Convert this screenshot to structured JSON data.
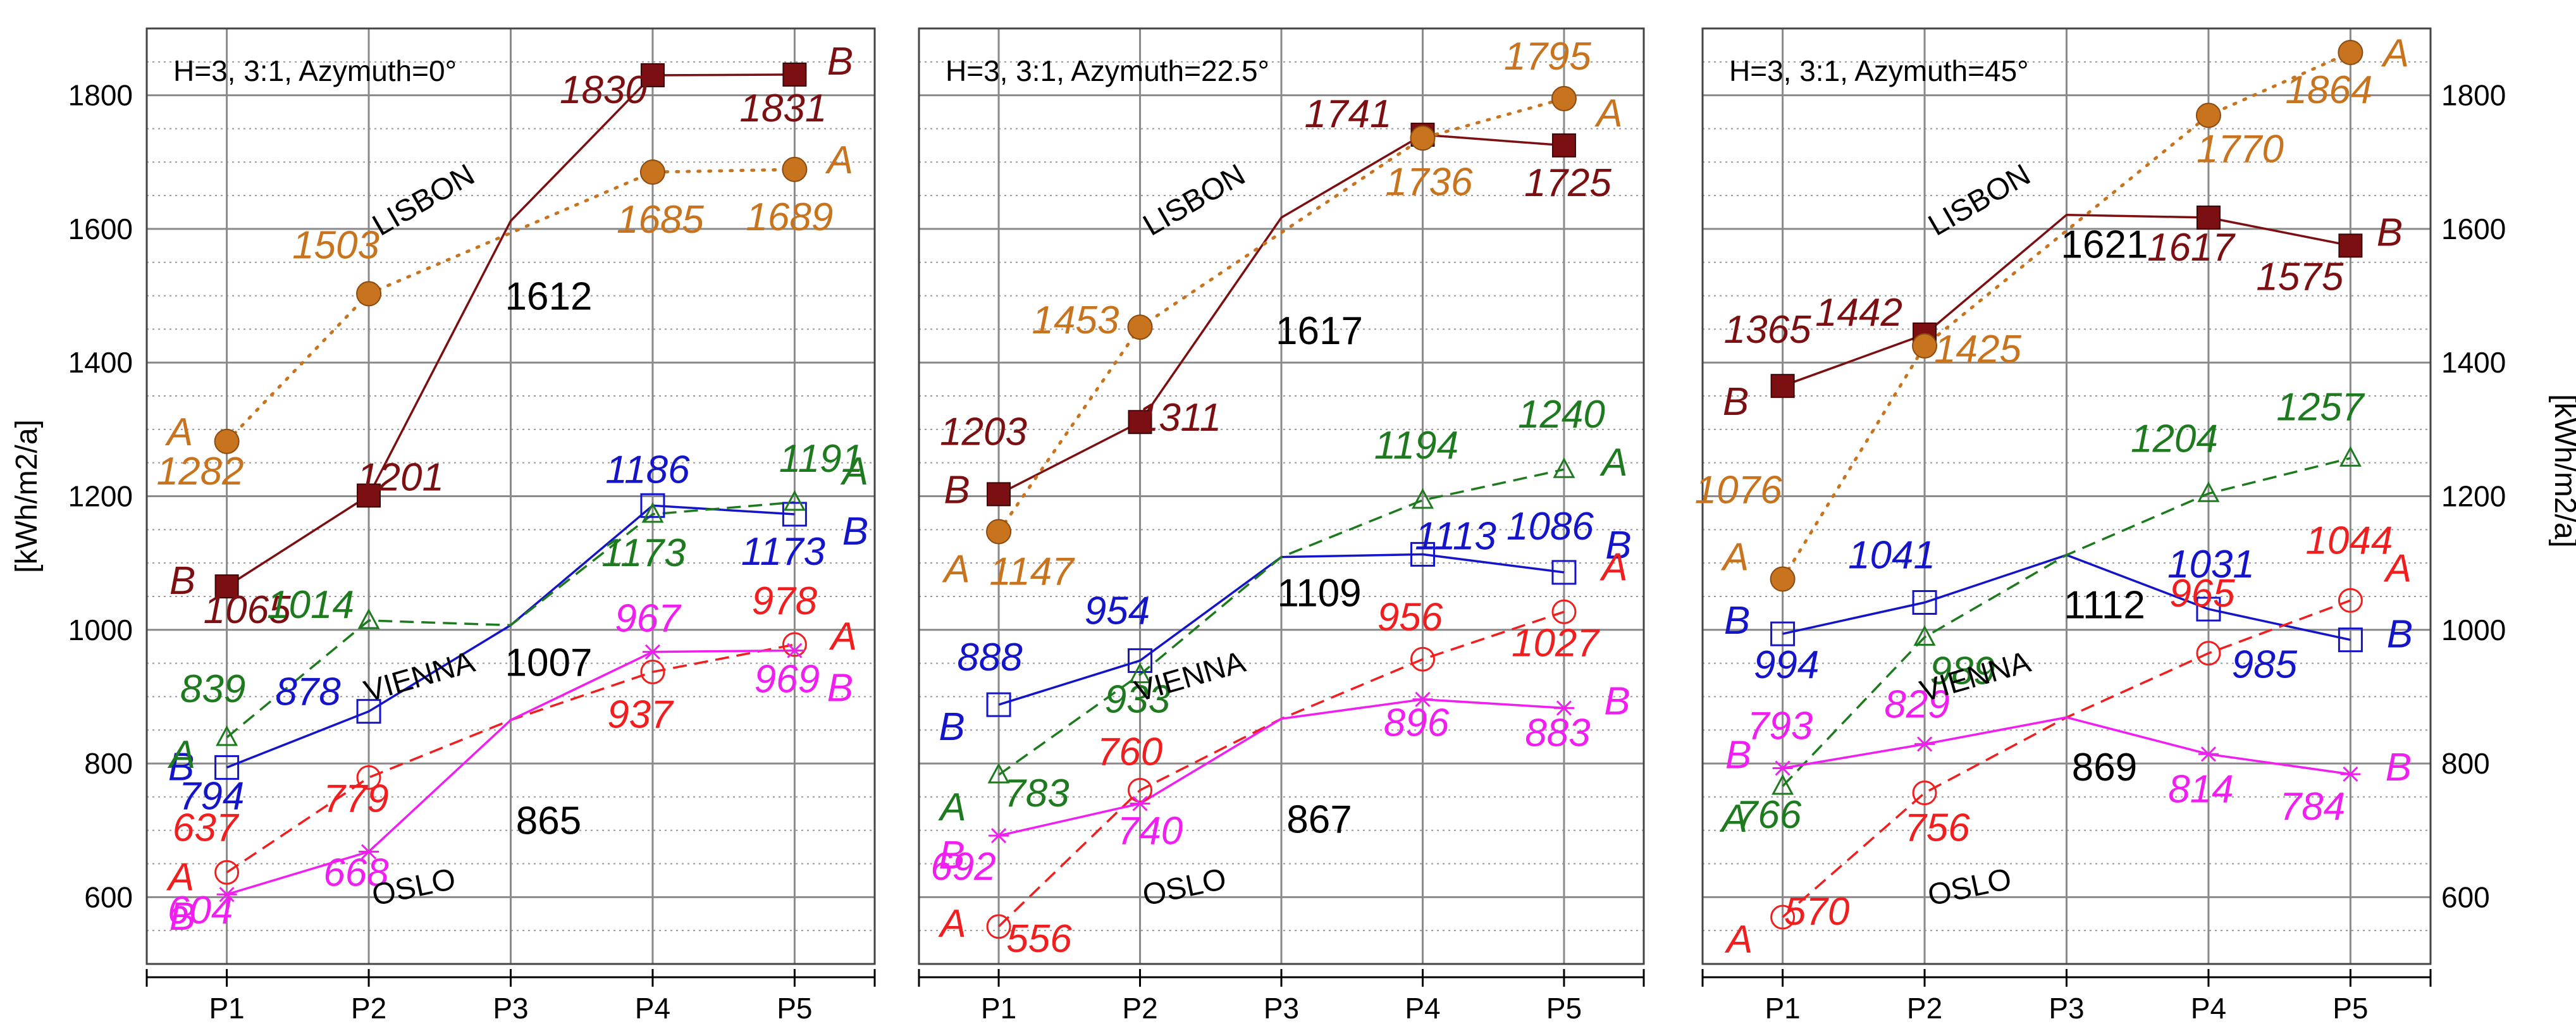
{
  "chart_data": {
    "type": "line",
    "ylabel": "[kWh/m2/a]",
    "ylim": [
      500,
      1900
    ],
    "yticks": [
      600,
      800,
      1000,
      1200,
      1400,
      1600,
      1800
    ],
    "grid": true,
    "categories": [
      "P1",
      "P2",
      "P3",
      "P4",
      "P5"
    ],
    "colors": {
      "lisbon_b": "#7B0F12",
      "lisbon_a": "#C8731E",
      "vienna_b": "#1414C8",
      "vienna_a": "#1E7A1E",
      "oslo_a": "#F01E1E",
      "oslo_b": "#F01EF0",
      "city_label": "#000000"
    },
    "panels": [
      {
        "title": "H=3, 3:1, Azymuth=0°",
        "cities": {
          "lisbon": "LISBON",
          "vienna": "VIENNA",
          "oslo": "OSLO"
        },
        "p3_values": {
          "lisbon": "1612",
          "vienna": "1007",
          "oslo": "865"
        },
        "series": [
          {
            "key": "lisbon_b",
            "city": "lisbon",
            "variant": "B",
            "values": [
              1065,
              1201,
              1612,
              1830,
              1831
            ]
          },
          {
            "key": "lisbon_a",
            "city": "lisbon",
            "variant": "A",
            "values": [
              1282,
              1503,
              null,
              1685,
              1689
            ]
          },
          {
            "key": "vienna_b",
            "city": "vienna",
            "variant": "B",
            "values": [
              794,
              878,
              1007,
              1186,
              1173
            ]
          },
          {
            "key": "vienna_a",
            "city": "vienna",
            "variant": "A",
            "values": [
              839,
              1014,
              1007,
              1173,
              1191
            ]
          },
          {
            "key": "oslo_a",
            "city": "oslo",
            "variant": "A",
            "values": [
              637,
              779,
              865,
              937,
              978
            ]
          },
          {
            "key": "oslo_b",
            "city": "oslo",
            "variant": "B",
            "values": [
              604,
              668,
              865,
              967,
              969
            ]
          }
        ]
      },
      {
        "title": "H=3, 3:1, Azymuth=22.5°",
        "cities": {
          "lisbon": "LISBON",
          "vienna": "VIENNA",
          "oslo": "OSLO"
        },
        "p3_values": {
          "lisbon": "1617",
          "vienna": "1109",
          "oslo": "867"
        },
        "series": [
          {
            "key": "lisbon_b",
            "city": "lisbon",
            "variant": "B",
            "values": [
              1203,
              1311,
              1617,
              1741,
              1725
            ]
          },
          {
            "key": "lisbon_a",
            "city": "lisbon",
            "variant": "A",
            "values": [
              1147,
              1453,
              null,
              1736,
              1795
            ]
          },
          {
            "key": "vienna_b",
            "city": "vienna",
            "variant": "B",
            "values": [
              888,
              954,
              1109,
              1113,
              1086
            ]
          },
          {
            "key": "vienna_a",
            "city": "vienna",
            "variant": "A",
            "values": [
              783,
              933,
              1109,
              1194,
              1240
            ]
          },
          {
            "key": "oslo_a",
            "city": "oslo",
            "variant": "A",
            "values": [
              556,
              760,
              867,
              956,
              1027
            ]
          },
          {
            "key": "oslo_b",
            "city": "oslo",
            "variant": "B",
            "values": [
              692,
              740,
              867,
              896,
              883
            ]
          }
        ]
      },
      {
        "title": "H=3, 3:1, Azymuth=45°",
        "cities": {
          "lisbon": "LISBON",
          "vienna": "VIENNA",
          "oslo": "OSLO"
        },
        "p3_values": {
          "lisbon": "1621",
          "vienna": "1112",
          "oslo": "869"
        },
        "series": [
          {
            "key": "lisbon_b",
            "city": "lisbon",
            "variant": "B",
            "values": [
              1365,
              1442,
              1621,
              1617,
              1575
            ]
          },
          {
            "key": "lisbon_a",
            "city": "lisbon",
            "variant": "A",
            "values": [
              1076,
              1425,
              null,
              1770,
              1864
            ]
          },
          {
            "key": "vienna_b",
            "city": "vienna",
            "variant": "B",
            "values": [
              994,
              1041,
              1112,
              1031,
              985
            ]
          },
          {
            "key": "vienna_a",
            "city": "vienna",
            "variant": "A",
            "values": [
              766,
              989,
              1112,
              1204,
              1257
            ]
          },
          {
            "key": "oslo_a",
            "city": "oslo",
            "variant": "A",
            "values": [
              570,
              756,
              869,
              965,
              1044
            ]
          },
          {
            "key": "oslo_b",
            "city": "oslo",
            "variant": "B",
            "values": [
              793,
              829,
              869,
              814,
              784
            ]
          }
        ]
      }
    ]
  }
}
